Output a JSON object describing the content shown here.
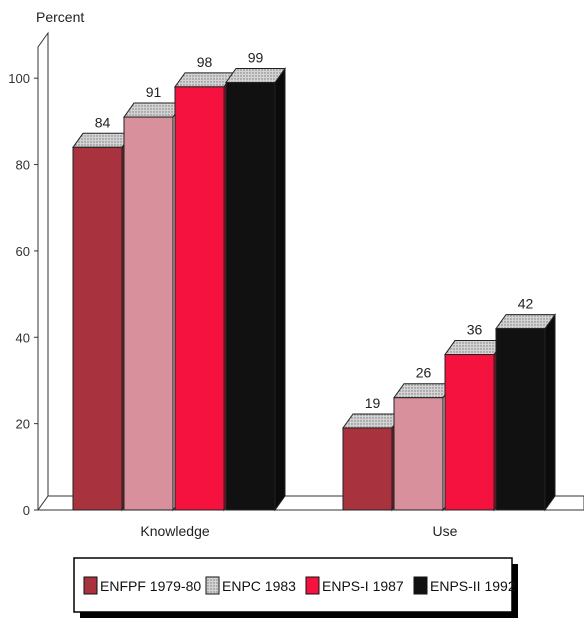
{
  "chart_data": {
    "type": "bar",
    "ylabel": "Percent",
    "ylim": [
      0,
      110
    ],
    "yticks": [
      0,
      20,
      40,
      60,
      80,
      100
    ],
    "categories": [
      "Knowledge",
      "Use"
    ],
    "series": [
      {
        "name": "ENFPF 1979-80",
        "values": [
          84,
          19
        ],
        "color": "#a8323e"
      },
      {
        "name": "ENPC 1983",
        "values": [
          91,
          26
        ],
        "color": "#d8909c"
      },
      {
        "name": "ENPS-I 1987",
        "values": [
          98,
          36
        ],
        "color": "#f5123e"
      },
      {
        "name": "ENPS-II 1992",
        "values": [
          99,
          42
        ],
        "color": "#111111"
      }
    ],
    "legend_position": "bottom",
    "grid": false,
    "style": "3d"
  }
}
